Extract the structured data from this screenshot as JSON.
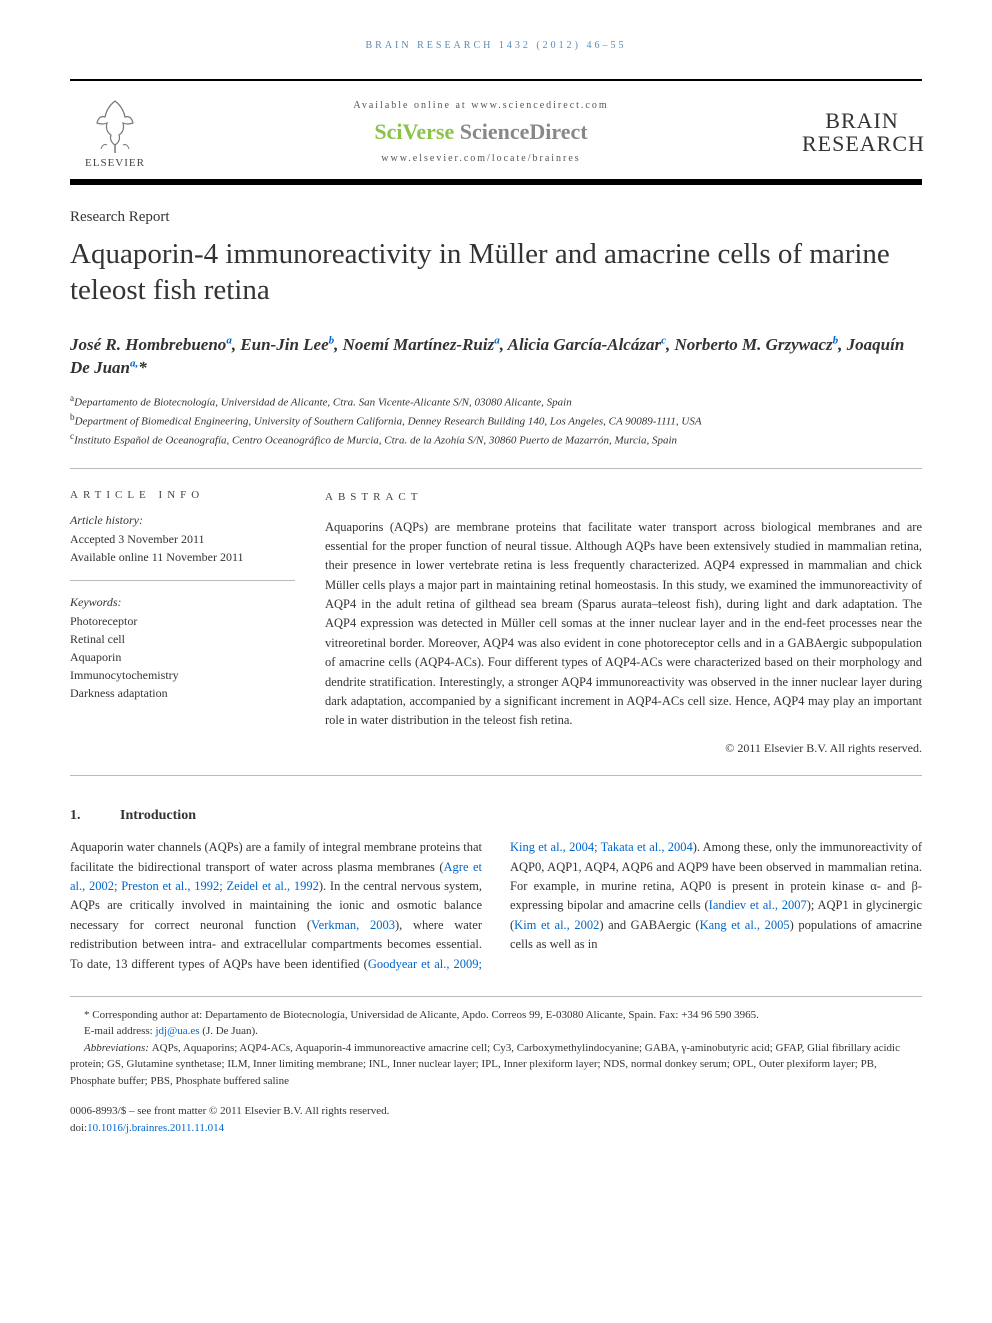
{
  "header": {
    "citation": "BRAIN RESEARCH 1432 (2012) 46–55",
    "available_online": "Available online at www.sciencedirect.com",
    "sciverse_green": "SciVerse",
    "sciverse_gray": " ScienceDirect",
    "journal_url": "www.elsevier.com/locate/brainres",
    "elsevier_label": "ELSEVIER",
    "journal_logo_line1": "BRAIN",
    "journal_logo_line2": "RESEARCH"
  },
  "doc_type": "Research Report",
  "title": "Aquaporin-4 immunoreactivity in Müller and amacrine cells of marine teleost fish retina",
  "authors_html": "José R. Hombrebueno<sup><a>a</a></sup>, Eun-Jin Lee<sup><a>b</a></sup>, Noemí Martínez-Ruiz<sup><a>a</a></sup>, Alicia García-Alcázar<sup><a>c</a></sup>, Norberto M. Grzywacz<sup><a>b</a></sup>, Joaquín De Juan<sup><a>a,</a></sup><a>*</a>",
  "affiliations": {
    "a": "Departamento de Biotecnología, Universidad de Alicante, Ctra. San Vicente-Alicante S/N, 03080 Alicante, Spain",
    "b": "Department of Biomedical Engineering, University of Southern California, Denney Research Building 140, Los Angeles, CA 90089-1111, USA",
    "c": "Instituto Español de Oceanografía, Centro Oceanográfico de Murcia, Ctra. de la Azohía S/N, 30860 Puerto de Mazarrón, Murcia, Spain"
  },
  "article_info": {
    "heading": "ARTICLE INFO",
    "history_label": "Article history:",
    "accepted": "Accepted 3 November 2011",
    "available": "Available online 11 November 2011",
    "keywords_label": "Keywords:",
    "keywords": [
      "Photoreceptor",
      "Retinal cell",
      "Aquaporin",
      "Immunocytochemistry",
      "Darkness adaptation"
    ]
  },
  "abstract": {
    "heading": "ABSTRACT",
    "text": "Aquaporins (AQPs) are membrane proteins that facilitate water transport across biological membranes and are essential for the proper function of neural tissue. Although AQPs have been extensively studied in mammalian retina, their presence in lower vertebrate retina is less frequently characterized. AQP4 expressed in mammalian and chick Müller cells plays a major part in maintaining retinal homeostasis. In this study, we examined the immunoreactivity of AQP4 in the adult retina of gilthead sea bream (Sparus aurata–teleost fish), during light and dark adaptation. The AQP4 expression was detected in Müller cell somas at the inner nuclear layer and in the end-feet processes near the vitreoretinal border. Moreover, AQP4 was also evident in cone photoreceptor cells and in a GABAergic subpopulation of amacrine cells (AQP4-ACs). Four different types of AQP4-ACs were characterized based on their morphology and dendrite stratification. Interestingly, a stronger AQP4 immunoreactivity was observed in the inner nuclear layer during dark adaptation, accompanied by a significant increment in AQP4-ACs cell size. Hence, AQP4 may play an important role in water distribution in the teleost fish retina.",
    "copyright": "© 2011 Elsevier B.V. All rights reserved."
  },
  "section1": {
    "num": "1.",
    "title": "Introduction",
    "body_html": "Aquaporin water channels (AQPs) are a family of integral membrane proteins that facilitate the bidirectional transport of water across plasma membranes (<a>Agre et al., 2002; Preston et al., 1992; Zeidel et al., 1992</a>). In the central nervous system, AQPs are critically involved in maintaining the ionic and osmotic balance necessary for correct neuronal function (<a>Verkman, 2003</a>), where water redistribution between intra- and extracellular compartments becomes essential. To date, 13 different types of AQPs have been identified (<a>Goodyear et al., 2009; King et al., 2004; Takata et al., 2004</a>). Among these, only the immunoreactivity of AQP0, AQP1, AQP4, AQP6 and AQP9 have been observed in mammalian retina. For example, in murine retina, AQP0 is present in protein kinase α- and β-expressing bipolar and amacrine cells (<a>Iandiev et al., 2007</a>); AQP1 in glycinergic (<a>Kim et al., 2002</a>) and GABAergic (<a>Kang et al., 2005</a>) populations of amacrine cells as well as in"
  },
  "footnotes": {
    "corresponding": "* Corresponding author at: Departamento de Biotecnología, Universidad de Alicante, Apdo. Correos 99, E-03080 Alicante, Spain. Fax: +34 96 590 3965.",
    "email_label": "E-mail address: ",
    "email": "jdj@ua.es",
    "email_suffix": " (J. De Juan).",
    "abbrev_label": "Abbreviations: ",
    "abbrev": "AQPs, Aquaporins; AQP4-ACs, Aquaporin-4 immunoreactive amacrine cell; Cy3, Carboxymethylindocyanine; GABA, γ-aminobutyric acid; GFAP, Glial fibrillary acidic protein; GS, Glutamine synthetase; ILM, Inner limiting membrane; INL, Inner nuclear layer; IPL, Inner plexiform layer; NDS, normal donkey serum; OPL, Outer plexiform layer; PB, Phosphate buffer; PBS, Phosphate buffered saline"
  },
  "bottom": {
    "line1": "0006-8993/$ – see front matter © 2011 Elsevier B.V. All rights reserved.",
    "doi_label": "doi:",
    "doi": "10.1016/j.brainres.2011.11.014"
  },
  "colors": {
    "link": "#0066cc",
    "citation": "#5b8bb5",
    "sv_green": "#8bc34a",
    "sv_gray": "#888888",
    "text": "#333333",
    "rule": "#bbbbbb"
  },
  "typography": {
    "title_fontsize": 29,
    "authors_fontsize": 17,
    "body_fontsize": 12.5,
    "footnote_fontsize": 11
  }
}
